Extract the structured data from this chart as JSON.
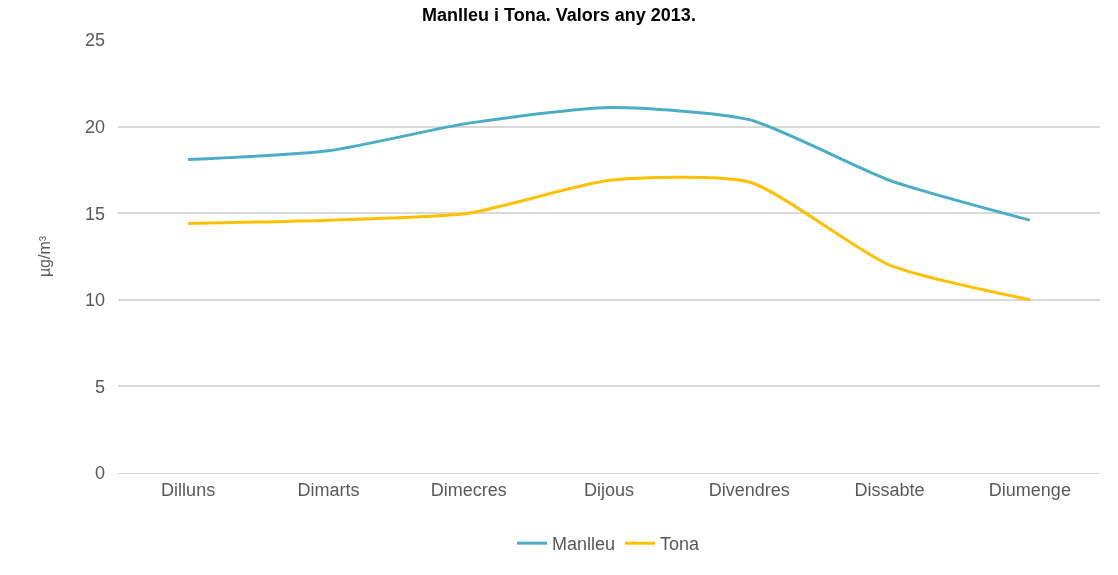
{
  "chart_data": {
    "type": "line",
    "title": "Manlleu i Tona. Valors any 2013.",
    "ylabel": "µg/m³",
    "categories": [
      "Dilluns",
      "Dimarts",
      "Dimecres",
      "Dijous",
      "Divendres",
      "Dissabte",
      "Diumenge"
    ],
    "series": [
      {
        "name": "Manlleu",
        "color": "#4bacc6",
        "values": [
          18.1,
          18.6,
          20.2,
          21.1,
          20.4,
          16.9,
          14.6
        ]
      },
      {
        "name": "Tona",
        "color": "#ffc000",
        "values": [
          14.4,
          14.6,
          15.0,
          16.9,
          16.8,
          12.0,
          10.0
        ]
      }
    ],
    "ylim": [
      0,
      25
    ],
    "yticks": [
      0,
      5,
      10,
      15,
      20,
      25
    ],
    "grid": "y",
    "legend": "bottom",
    "marker": "none",
    "line_style": "solid"
  }
}
